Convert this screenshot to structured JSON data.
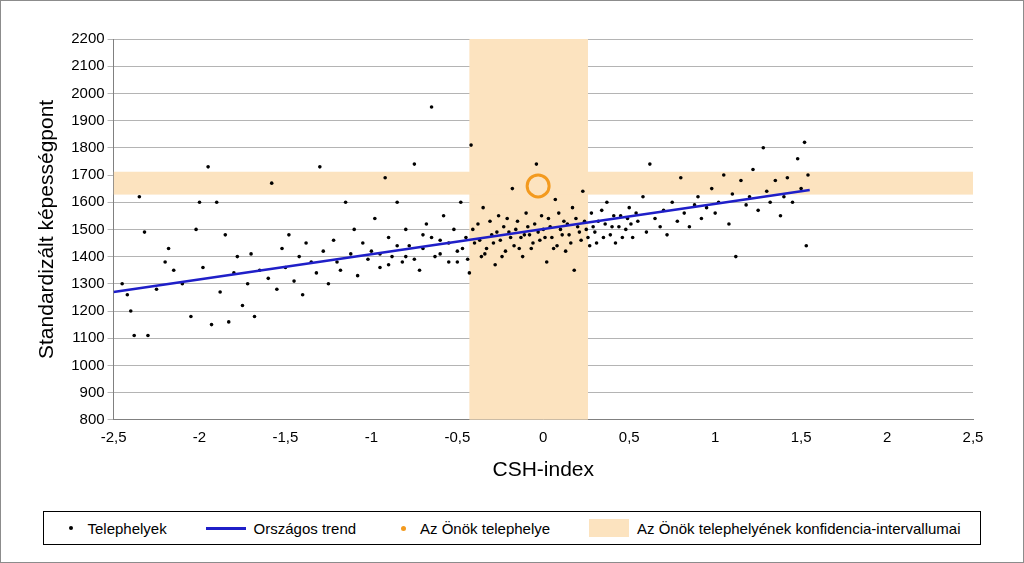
{
  "chart_data": {
    "type": "scatter",
    "x_label": "CSH-index",
    "y_label": "Standardizált képességpont",
    "xlim": [
      -2.5,
      2.5
    ],
    "xticks": [
      {
        "value": -2.5,
        "label": "-2,5"
      },
      -2,
      {
        "value": -1.5,
        "label": "-1,5"
      },
      -1,
      {
        "value": -0.5,
        "label": "-0,5"
      },
      0,
      {
        "value": 0.5,
        "label": "0,5"
      },
      1,
      {
        "value": 1.5,
        "label": "1,5"
      },
      2,
      {
        "value": 2.5,
        "label": "2,5"
      }
    ],
    "ylim": [
      800,
      2200
    ],
    "yticks": [
      800,
      900,
      1000,
      1100,
      1200,
      1300,
      1400,
      1500,
      1600,
      1700,
      1800,
      1900,
      2000,
      2100,
      2200
    ],
    "grid": "y",
    "legend": "bottom",
    "series": [
      {
        "name": "Telephelyek",
        "color": "#000000",
        "marker": "dot",
        "x": [
          -2.45,
          -2.42,
          -2.38,
          -2.4,
          -2.35,
          -2.32,
          -2.3,
          -2.25,
          -2.2,
          -2.18,
          -2.15,
          -2.1,
          -2.05,
          -2.02,
          -2.0,
          -1.98,
          -1.95,
          -1.93,
          -1.9,
          -1.88,
          -1.85,
          -1.83,
          -1.8,
          -1.78,
          -1.75,
          -1.72,
          -1.7,
          -1.68,
          -1.65,
          -1.6,
          -1.58,
          -1.55,
          -1.52,
          -1.5,
          -1.48,
          -1.45,
          -1.42,
          -1.4,
          -1.38,
          -1.35,
          -1.32,
          -1.3,
          -1.28,
          -1.25,
          -1.22,
          -1.2,
          -1.18,
          -1.15,
          -1.12,
          -1.1,
          -1.08,
          -1.05,
          -1.02,
          -1.0,
          -0.98,
          -0.95,
          -0.92,
          -0.9,
          -0.88,
          -0.85,
          -0.82,
          -0.8,
          -0.78,
          -0.75,
          -0.72,
          -0.7,
          -0.68,
          -0.65,
          -0.63,
          -0.6,
          -0.58,
          -0.55,
          -0.52,
          -0.5,
          -0.48,
          -0.45,
          -0.43,
          -0.42,
          -0.4,
          -0.38,
          -0.36,
          -0.35,
          -0.33,
          -0.3,
          -0.28,
          -0.26,
          -0.25,
          -0.23,
          -0.22,
          -0.2,
          -0.18,
          -0.17,
          -0.15,
          -0.13,
          -0.12,
          -0.1,
          -0.08,
          -0.07,
          -0.05,
          -0.04,
          -0.02,
          0.0,
          0.02,
          0.03,
          0.05,
          0.07,
          0.08,
          0.1,
          0.12,
          0.13,
          0.15,
          0.17,
          0.18,
          0.2,
          0.22,
          0.23,
          0.25,
          0.27,
          0.28,
          0.3,
          0.32,
          0.35,
          0.37,
          0.4,
          0.42,
          0.45,
          0.48,
          0.5,
          0.52,
          0.55,
          0.58,
          0.6,
          0.62,
          0.65,
          0.68,
          0.7,
          0.72,
          0.75,
          0.78,
          0.8,
          0.82,
          0.85,
          0.88,
          0.9,
          0.92,
          0.95,
          0.98,
          1.0,
          1.02,
          1.05,
          1.08,
          1.1,
          1.12,
          1.15,
          1.18,
          1.2,
          1.22,
          1.25,
          1.28,
          1.3,
          1.32,
          1.35,
          1.38,
          1.4,
          1.42,
          1.45,
          1.48,
          1.5,
          1.52,
          1.53,
          1.54,
          -0.47,
          -0.44,
          -0.41,
          -0.37,
          -0.34,
          -0.31,
          -0.29,
          -0.27,
          -0.24,
          -0.21,
          -0.19,
          -0.16,
          -0.14,
          -0.11,
          -0.09,
          -0.06,
          -0.03,
          -0.01,
          0.01,
          0.04,
          0.06,
          0.09,
          0.11,
          0.14,
          0.16,
          0.19,
          0.21,
          0.24,
          0.26,
          0.29,
          0.31,
          0.34,
          0.36,
          0.39,
          0.41,
          0.44,
          0.46,
          0.49,
          0.51,
          0.54,
          -0.5,
          -0.6,
          -0.7,
          -0.8,
          -0.9,
          -0.55,
          -0.65,
          -0.75,
          -0.85,
          -0.95
        ],
        "values": [
          1300,
          1260,
          1110,
          1200,
          1620,
          1490,
          1110,
          1280,
          1380,
          1430,
          1350,
          1300,
          1180,
          1500,
          1600,
          1360,
          1730,
          1150,
          1600,
          1270,
          1480,
          1160,
          1340,
          1400,
          1220,
          1300,
          1410,
          1180,
          1350,
          1320,
          1670,
          1280,
          1430,
          1360,
          1480,
          1310,
          1400,
          1260,
          1450,
          1380,
          1340,
          1730,
          1420,
          1300,
          1460,
          1380,
          1350,
          1600,
          1410,
          1500,
          1330,
          1450,
          1390,
          1420,
          1540,
          1360,
          1690,
          1470,
          1400,
          1600,
          1380,
          1500,
          1440,
          1740,
          1350,
          1480,
          1520,
          1950,
          1400,
          1460,
          1550,
          1380,
          1500,
          1420,
          1600,
          1470,
          1340,
          1810,
          1450,
          1520,
          1400,
          1580,
          1430,
          1480,
          1370,
          1550,
          1460,
          1510,
          1420,
          1490,
          1650,
          1440,
          1530,
          1470,
          1400,
          1560,
          1480,
          1430,
          1520,
          1740,
          1460,
          1500,
          1380,
          1540,
          1470,
          1610,
          1440,
          1500,
          1530,
          1420,
          1480,
          1580,
          1350,
          1510,
          1460,
          1640,
          1500,
          1440,
          1560,
          1490,
          1530,
          1470,
          1600,
          1510,
          1450,
          1550,
          1500,
          1580,
          1470,
          1530,
          1620,
          1490,
          1740,
          1540,
          1510,
          1570,
          1480,
          1600,
          1530,
          1690,
          1560,
          1510,
          1590,
          1620,
          1540,
          1580,
          1650,
          1560,
          1600,
          1700,
          1520,
          1630,
          1400,
          1680,
          1590,
          1620,
          1720,
          1570,
          1800,
          1640,
          1600,
          1680,
          1550,
          1620,
          1690,
          1600,
          1760,
          1650,
          1820,
          1440,
          1700,
          1430,
          1390,
          1500,
          1460,
          1410,
          1530,
          1450,
          1490,
          1400,
          1540,
          1470,
          1500,
          1430,
          1480,
          1510,
          1450,
          1490,
          1550,
          1470,
          1510,
          1430,
          1560,
          1480,
          1520,
          1450,
          1540,
          1490,
          1530,
          1470,
          1510,
          1450,
          1570,
          1520,
          1480,
          1550,
          1510,
          1470,
          1540,
          1520,
          1560,
          1380,
          1410,
          1430,
          1400,
          1370,
          1450,
          1470,
          1390,
          1440,
          1410
        ]
      },
      {
        "name": "Országos trend",
        "color": "#1f1fc8",
        "type": "line",
        "x": [
          -2.5,
          1.55
        ],
        "values": [
          1270,
          1645
        ]
      },
      {
        "name": "Az Önök telephelye",
        "color": "#f39a1e",
        "marker": "ring",
        "x": [
          -0.03
        ],
        "values": [
          1660
        ]
      }
    ],
    "confidence_interval": {
      "name": "Az Önök telephelyének konfidencia-intervallumai",
      "color": "#fce3bf",
      "x": [
        -0.43,
        0.26
      ],
      "y": [
        1628,
        1712
      ]
    }
  }
}
